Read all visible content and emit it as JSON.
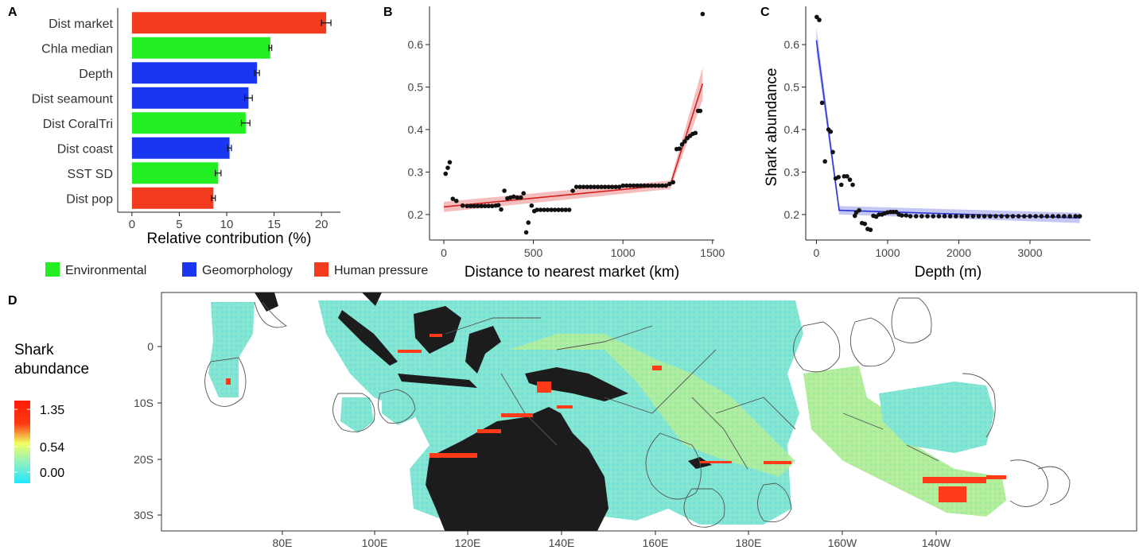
{
  "panels": {
    "a": "A",
    "b": "B",
    "c": "C",
    "d": "D"
  },
  "chart_data": [
    {
      "type": "bar",
      "orientation": "horizontal",
      "categories": [
        "Dist market",
        "Chla median",
        "Depth",
        "Dist seamount",
        "Dist CoralTri",
        "Dist coast",
        "SST SD",
        "Dist pop"
      ],
      "values": [
        20.5,
        14.6,
        13.2,
        12.3,
        12.0,
        10.3,
        9.1,
        8.6
      ],
      "errors": [
        0.5,
        0.15,
        0.25,
        0.4,
        0.45,
        0.2,
        0.3,
        0.2
      ],
      "groups": [
        "Human pressure",
        "Environmental",
        "Geomorphology",
        "Geomorphology",
        "Environmental",
        "Geomorphology",
        "Environmental",
        "Human pressure"
      ],
      "xlabel": "Relative contribution (%)",
      "xlim": [
        -1.5,
        22
      ],
      "xticks": [
        0,
        5,
        10,
        15,
        20
      ],
      "legend": {
        "placement": "bottom",
        "items": [
          {
            "label": "Environmental",
            "color": "#22ee22"
          },
          {
            "label": "Geomorphology",
            "color": "#1a36f0"
          },
          {
            "label": "Human pressure",
            "color": "#f23a1e"
          }
        ]
      }
    },
    {
      "type": "scatter",
      "xlabel": "Distance to nearest market (km)",
      "ylabel": "",
      "xlim": [
        -80,
        1510
      ],
      "ylim": [
        0.14,
        0.69
      ],
      "xticks": [
        0,
        500,
        1000,
        1500
      ],
      "yticks": [
        0.2,
        0.3,
        0.4,
        0.5,
        0.6
      ],
      "grid": false,
      "points": [
        [
          10,
          0.296
        ],
        [
          22,
          0.31
        ],
        [
          33,
          0.323
        ],
        [
          50,
          0.237
        ],
        [
          70,
          0.232
        ],
        [
          105,
          0.221
        ],
        [
          130,
          0.22
        ],
        [
          150,
          0.22
        ],
        [
          170,
          0.22
        ],
        [
          190,
          0.22
        ],
        [
          210,
          0.22
        ],
        [
          230,
          0.22
        ],
        [
          250,
          0.22
        ],
        [
          270,
          0.22
        ],
        [
          290,
          0.221
        ],
        [
          305,
          0.222
        ],
        [
          320,
          0.212
        ],
        [
          338,
          0.256
        ],
        [
          355,
          0.238
        ],
        [
          372,
          0.24
        ],
        [
          390,
          0.242
        ],
        [
          410,
          0.24
        ],
        [
          430,
          0.24
        ],
        [
          445,
          0.25
        ],
        [
          460,
          0.158
        ],
        [
          472,
          0.181
        ],
        [
          490,
          0.221
        ],
        [
          505,
          0.208
        ],
        [
          520,
          0.211
        ],
        [
          540,
          0.211
        ],
        [
          560,
          0.211
        ],
        [
          580,
          0.211
        ],
        [
          600,
          0.211
        ],
        [
          620,
          0.211
        ],
        [
          640,
          0.211
        ],
        [
          660,
          0.211
        ],
        [
          680,
          0.211
        ],
        [
          700,
          0.211
        ],
        [
          720,
          0.256
        ],
        [
          740,
          0.265
        ],
        [
          760,
          0.265
        ],
        [
          780,
          0.265
        ],
        [
          800,
          0.265
        ],
        [
          820,
          0.265
        ],
        [
          840,
          0.265
        ],
        [
          860,
          0.265
        ],
        [
          880,
          0.265
        ],
        [
          900,
          0.265
        ],
        [
          920,
          0.265
        ],
        [
          940,
          0.265
        ],
        [
          960,
          0.265
        ],
        [
          980,
          0.265
        ],
        [
          1000,
          0.268
        ],
        [
          1020,
          0.268
        ],
        [
          1040,
          0.268
        ],
        [
          1060,
          0.268
        ],
        [
          1080,
          0.268
        ],
        [
          1100,
          0.268
        ],
        [
          1120,
          0.268
        ],
        [
          1140,
          0.268
        ],
        [
          1160,
          0.268
        ],
        [
          1180,
          0.268
        ],
        [
          1200,
          0.268
        ],
        [
          1220,
          0.268
        ],
        [
          1240,
          0.268
        ],
        [
          1260,
          0.272
        ],
        [
          1280,
          0.276
        ],
        [
          1300,
          0.354
        ],
        [
          1315,
          0.355
        ],
        [
          1330,
          0.365
        ],
        [
          1345,
          0.372
        ],
        [
          1360,
          0.38
        ],
        [
          1375,
          0.385
        ],
        [
          1390,
          0.39
        ],
        [
          1405,
          0.392
        ],
        [
          1420,
          0.444
        ],
        [
          1432,
          0.444
        ],
        [
          1445,
          0.672
        ]
      ],
      "fit": {
        "color": "#d22222",
        "band": "#f2a8a8",
        "x": [
          0,
          1265,
          1445
        ],
        "y": [
          0.218,
          0.27,
          0.508
        ],
        "ci": [
          0.012,
          0.01,
          0.038
        ]
      }
    },
    {
      "type": "scatter",
      "xlabel": "Depth (m)",
      "ylabel": "Shark abundance",
      "xlim": [
        -150,
        3850
      ],
      "ylim": [
        0.14,
        0.69
      ],
      "xticks": [
        0,
        1000,
        2000,
        3000
      ],
      "yticks": [
        0.2,
        0.3,
        0.4,
        0.5,
        0.6
      ],
      "grid": false,
      "points": [
        [
          5,
          0.665
        ],
        [
          40,
          0.658
        ],
        [
          80,
          0.463
        ],
        [
          120,
          0.325
        ],
        [
          170,
          0.4
        ],
        [
          200,
          0.395
        ],
        [
          230,
          0.347
        ],
        [
          270,
          0.285
        ],
        [
          310,
          0.288
        ],
        [
          350,
          0.27
        ],
        [
          390,
          0.29
        ],
        [
          430,
          0.29
        ],
        [
          470,
          0.282
        ],
        [
          510,
          0.27
        ],
        [
          540,
          0.197
        ],
        [
          560,
          0.205
        ],
        [
          600,
          0.21
        ],
        [
          640,
          0.18
        ],
        [
          680,
          0.178
        ],
        [
          720,
          0.166
        ],
        [
          760,
          0.164
        ],
        [
          800,
          0.197
        ],
        [
          840,
          0.195
        ],
        [
          880,
          0.2
        ],
        [
          920,
          0.2
        ],
        [
          960,
          0.203
        ],
        [
          1000,
          0.205
        ],
        [
          1040,
          0.206
        ],
        [
          1080,
          0.206
        ],
        [
          1120,
          0.206
        ],
        [
          1160,
          0.2
        ],
        [
          1200,
          0.198
        ],
        [
          1260,
          0.198
        ],
        [
          1320,
          0.196
        ],
        [
          1400,
          0.196
        ],
        [
          1480,
          0.196
        ],
        [
          1560,
          0.196
        ],
        [
          1640,
          0.196
        ],
        [
          1720,
          0.196
        ],
        [
          1800,
          0.196
        ],
        [
          1880,
          0.196
        ],
        [
          1960,
          0.196
        ],
        [
          2040,
          0.196
        ],
        [
          2120,
          0.196
        ],
        [
          2200,
          0.196
        ],
        [
          2280,
          0.196
        ],
        [
          2360,
          0.196
        ],
        [
          2440,
          0.196
        ],
        [
          2520,
          0.196
        ],
        [
          2600,
          0.196
        ],
        [
          2680,
          0.196
        ],
        [
          2760,
          0.196
        ],
        [
          2840,
          0.196
        ],
        [
          2920,
          0.196
        ],
        [
          3000,
          0.196
        ],
        [
          3080,
          0.196
        ],
        [
          3160,
          0.196
        ],
        [
          3240,
          0.196
        ],
        [
          3320,
          0.196
        ],
        [
          3400,
          0.196
        ],
        [
          3480,
          0.196
        ],
        [
          3560,
          0.196
        ],
        [
          3640,
          0.196
        ],
        [
          3700,
          0.196
        ]
      ],
      "fit": {
        "color": "#2a35d6",
        "band": "#b0b4f0",
        "x": [
          0,
          320,
          3700
        ],
        "y": [
          0.61,
          0.21,
          0.192
        ],
        "ci": [
          0.03,
          0.01,
          0.012
        ]
      }
    },
    {
      "type": "heatmap",
      "variant": "map",
      "xticks": [
        "80E",
        "100E",
        "120E",
        "140E",
        "160E",
        "180E",
        "160W",
        "140W"
      ],
      "yticks": [
        "0",
        "10S",
        "20S",
        "30S"
      ],
      "legend": {
        "title_lines": [
          "Shark",
          "abundance"
        ],
        "labels": [
          "1.35",
          "0.54",
          "0.00"
        ],
        "scale": [
          "#22e8ff",
          "#8ff0c0",
          "#f0ff60",
          "#ff3a12",
          "#ff1a08"
        ]
      },
      "colors": {
        "land": "#1c1c1c",
        "ocean_base": "#7fe8cf",
        "ocean_mid": "#b8f09a",
        "high": "#ff3a18",
        "eez_line": "#555555"
      }
    }
  ]
}
